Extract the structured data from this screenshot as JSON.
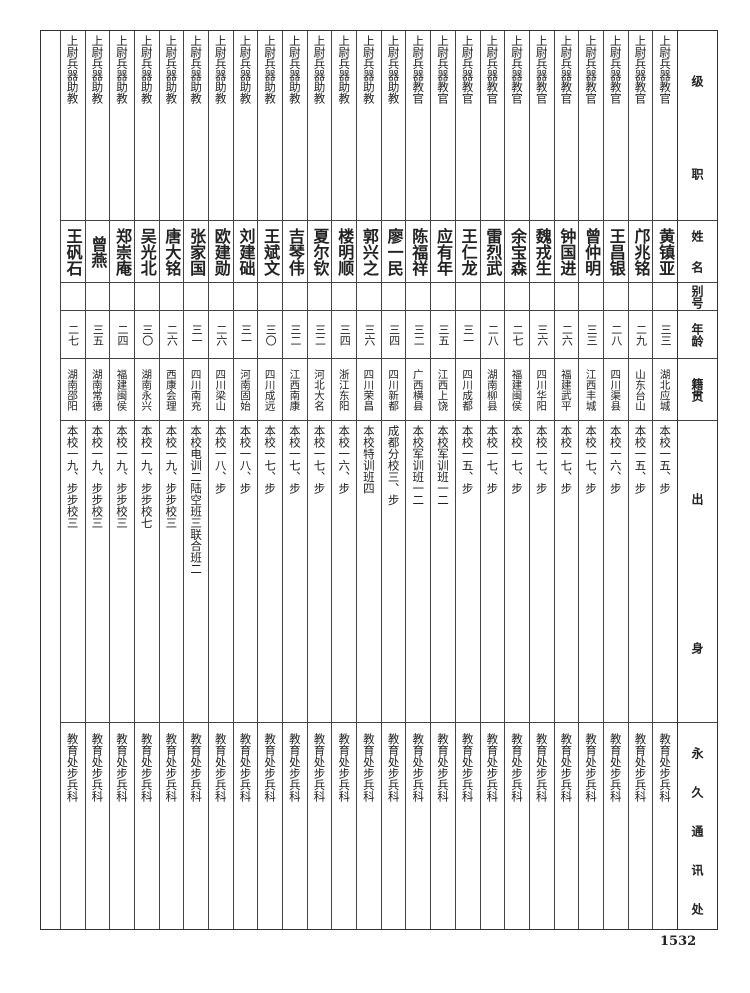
{
  "headers": {
    "rank": "级职",
    "name": "姓名",
    "alias": "别号",
    "age": "年龄",
    "native_place": "籍贯",
    "background": "出身",
    "address": "永久通讯处"
  },
  "rows": [
    {
      "rank": "上尉兵器教官",
      "name": "黄镇亚",
      "alias": "",
      "age": "三三",
      "native_place": "湖北应城",
      "background": "本校一五、步",
      "address": "教育处步兵科"
    },
    {
      "rank": "上尉兵器教官",
      "name": "邝兆铭",
      "alias": "",
      "age": "二九",
      "native_place": "山东台山",
      "background": "本校一五、步",
      "address": "教育处步兵科"
    },
    {
      "rank": "上尉兵器教官",
      "name": "王昌银",
      "alias": "",
      "age": "二八",
      "native_place": "四川渠县",
      "background": "本校一六、步",
      "address": "教育处步兵科"
    },
    {
      "rank": "上尉兵器教官",
      "name": "曾仲明",
      "alias": "",
      "age": "三三",
      "native_place": "江西丰城",
      "background": "本校一七、步",
      "address": "教育处步兵科"
    },
    {
      "rank": "上尉兵器教官",
      "name": "钟国进",
      "alias": "",
      "age": "二六",
      "native_place": "福建武平",
      "background": "本校一七、步",
      "address": "教育处步兵科"
    },
    {
      "rank": "上尉兵器教官",
      "name": "魏戎生",
      "alias": "",
      "age": "三六",
      "native_place": "四川华阳",
      "background": "本校一七、步",
      "address": "教育处步兵科"
    },
    {
      "rank": "上尉兵器教官",
      "name": "余宝森",
      "alias": "",
      "age": "二七",
      "native_place": "福建闽侯",
      "background": "本校一七、步",
      "address": "教育处步兵科"
    },
    {
      "rank": "上尉兵器教官",
      "name": "雷烈武",
      "alias": "",
      "age": "二八",
      "native_place": "湖南柳县",
      "background": "本校一七、步",
      "address": "教育处步兵科"
    },
    {
      "rank": "上尉兵器教官",
      "name": "王仁龙",
      "alias": "",
      "age": "三一",
      "native_place": "四川成都",
      "background": "本校一五、步",
      "address": "教育处步兵科"
    },
    {
      "rank": "上尉兵器教官",
      "name": "应有年",
      "alias": "",
      "age": "三五",
      "native_place": "江西上饶",
      "background": "本校军训班一二",
      "address": "教育处步兵科"
    },
    {
      "rank": "上尉兵器教官",
      "name": "陈福祥",
      "alias": "",
      "age": "三二",
      "native_place": "广西横县",
      "background": "本校军训班一二",
      "address": "教育处步兵科"
    },
    {
      "rank": "上尉兵器助教",
      "name": "廖一民",
      "alias": "",
      "age": "三四",
      "native_place": "四川新都",
      "background": "成都分校三、步",
      "address": "教育处步兵科"
    },
    {
      "rank": "上尉兵器助教",
      "name": "郭兴之",
      "alias": "",
      "age": "三六",
      "native_place": "四川荣昌",
      "background": "本校特训班四",
      "address": "教育处步兵科"
    },
    {
      "rank": "上尉兵器助教",
      "name": "楼明顺",
      "alias": "",
      "age": "三四",
      "native_place": "浙江东阳",
      "background": "本校一六、步",
      "address": "教育处步兵科"
    },
    {
      "rank": "上尉兵器助教",
      "name": "夏尔钦",
      "alias": "",
      "age": "三二",
      "native_place": "河北大名",
      "background": "本校一七、步",
      "address": "教育处步兵科"
    },
    {
      "rank": "上尉兵器助教",
      "name": "吉琴伟",
      "alias": "",
      "age": "三二",
      "native_place": "江西南康",
      "background": "本校一七、步",
      "address": "教育处步兵科"
    },
    {
      "rank": "上尉兵器助教",
      "name": "王斌文",
      "alias": "",
      "age": "三〇",
      "native_place": "四川成远",
      "background": "本校一七、步",
      "address": "教育处步兵科"
    },
    {
      "rank": "上尉兵器助教",
      "name": "刘建础",
      "alias": "",
      "age": "三一",
      "native_place": "河南固始",
      "background": "本校一八、步",
      "address": "教育处步兵科"
    },
    {
      "rank": "上尉兵器助教",
      "name": "欧建勋",
      "alias": "",
      "age": "二六",
      "native_place": "四川梁山",
      "background": "本校一八、步",
      "address": "教育处步兵科"
    },
    {
      "rank": "上尉兵器助教",
      "name": "张家国",
      "alias": "",
      "age": "三一",
      "native_place": "四川南充",
      "background": "本校电训二陆空班三联合班二",
      "address": "教育处步兵科"
    },
    {
      "rank": "上尉兵器助教",
      "name": "唐大铭",
      "alias": "",
      "age": "二六",
      "native_place": "西康会理",
      "background": "本校一九、步步校三",
      "address": "教育处步兵科"
    },
    {
      "rank": "上尉兵器助教",
      "name": "吴光北",
      "alias": "",
      "age": "三〇",
      "native_place": "湖南永兴",
      "background": "本校一九、步步校七",
      "address": "教育处步兵科"
    },
    {
      "rank": "上尉兵器助教",
      "name": "郑崇庵",
      "alias": "",
      "age": "二四",
      "native_place": "福建闽侯",
      "background": "本校一九、步步校三",
      "address": "教育处步兵科"
    },
    {
      "rank": "上尉兵器助教",
      "name": "曾燕",
      "alias": "",
      "age": "三五",
      "native_place": "湖南常德",
      "background": "本校一九、步步校三",
      "address": "教育处步兵科"
    },
    {
      "rank": "上尉兵器助教",
      "name": "王矾石",
      "alias": "",
      "age": "二七",
      "native_place": "湖南邵阳",
      "background": "本校一九、步步校三",
      "address": "教育处步兵科"
    }
  ],
  "page_number": "1532"
}
